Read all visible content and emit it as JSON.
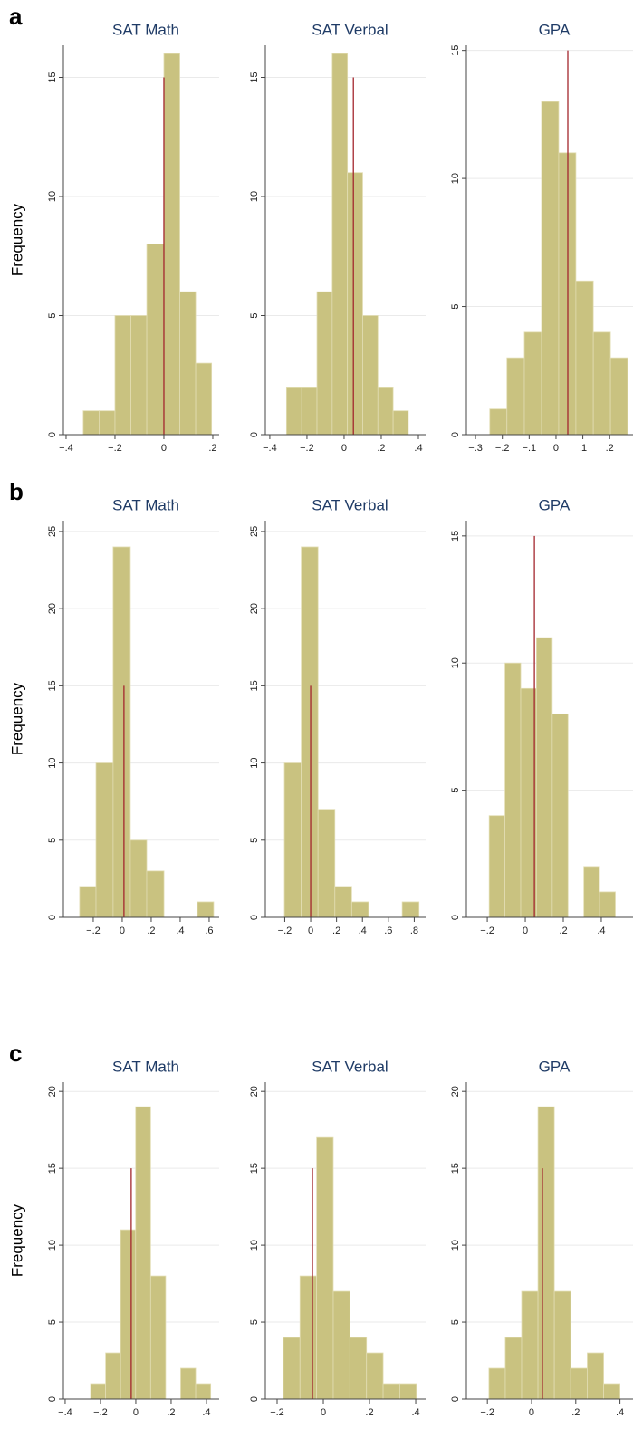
{
  "chart_data": [
    {
      "type": "histogram",
      "panel_label": "a",
      "ylabel": "Frequency",
      "title": "SAT Math",
      "bins": [
        -0.33,
        -0.265,
        -0.2,
        -0.135,
        -0.07,
        0,
        0.065,
        0.13,
        0.195
      ],
      "values": [
        1,
        1,
        5,
        5,
        8,
        16,
        6,
        3
      ],
      "color": "#c9c280",
      "xlim": [
        -0.411,
        0.226
      ],
      "xticks": [
        {
          "value": -0.4,
          "label": "−.4"
        },
        {
          "value": -0.2,
          "label": "−.2"
        },
        0,
        {
          "value": 0.2,
          "label": ".2"
        }
      ],
      "ylim": [
        0,
        16.35
      ],
      "yticks": [
        0,
        5,
        10,
        15
      ],
      "grid": true,
      "reference_line": {
        "x": 0,
        "y": 15,
        "color": "#a3262d"
      }
    },
    {
      "type": "histogram",
      "title": "SAT Verbal",
      "bins": [
        -0.31,
        -0.228,
        -0.146,
        -0.064,
        0.018,
        0.1,
        0.182,
        0.264,
        0.346
      ],
      "values": [
        2,
        2,
        6,
        16,
        11,
        5,
        2,
        1
      ],
      "color": "#c9c280",
      "xlim": [
        -0.424,
        0.439
      ],
      "xticks": [
        {
          "value": -0.4,
          "label": "−.4"
        },
        {
          "value": -0.2,
          "label": "−.2"
        },
        0,
        {
          "value": 0.2,
          "label": ".2"
        },
        {
          "value": 0.4,
          "label": ".4"
        }
      ],
      "ylim": [
        0,
        16.35
      ],
      "yticks": [
        0,
        5,
        10,
        15
      ],
      "grid": true,
      "reference_line": {
        "x": 0.05,
        "y": 15,
        "color": "#a3262d"
      }
    },
    {
      "type": "histogram",
      "title": "GPA",
      "bins": [
        -0.247,
        -0.183,
        -0.118,
        -0.054,
        0.01,
        0.074,
        0.139,
        0.203,
        0.267
      ],
      "values": [
        1,
        3,
        4,
        13,
        11,
        6,
        4,
        3
      ],
      "color": "#c9c280",
      "xlim": [
        -0.334,
        0.287
      ],
      "xticks": [
        {
          "value": -0.3,
          "label": "−.3"
        },
        {
          "value": -0.2,
          "label": "−.2"
        },
        {
          "value": -0.1,
          "label": "−.1"
        },
        0,
        {
          "value": 0.1,
          "label": ".1"
        },
        {
          "value": 0.2,
          "label": ".2"
        }
      ],
      "ylim": [
        0,
        15.2
      ],
      "yticks": [
        0,
        5,
        10,
        15
      ],
      "grid": true,
      "reference_line": {
        "x": 0.044,
        "y": 15,
        "color": "#a3262d"
      }
    },
    {
      "type": "histogram",
      "panel_label": "b",
      "ylabel": "Frequency",
      "title": "SAT Math",
      "bins": [
        -0.294,
        -0.181,
        -0.063,
        0.056,
        0.169,
        0.288,
        0.4,
        0.519,
        0.631
      ],
      "values": [
        2,
        10,
        24,
        5,
        3,
        0,
        0,
        1
      ],
      "color": "#c9c280",
      "xlim": [
        -0.406,
        0.669
      ],
      "xticks": [
        {
          "value": -0.2,
          "label": "−.2"
        },
        0,
        {
          "value": 0.2,
          "label": ".2"
        },
        {
          "value": 0.4,
          "label": ".4"
        },
        {
          "value": 0.6,
          "label": ".6"
        }
      ],
      "ylim": [
        0,
        25.7
      ],
      "yticks": [
        0,
        5,
        10,
        15,
        20,
        25
      ],
      "grid": true,
      "reference_line": {
        "x": 0.012,
        "y": 15,
        "color": "#a3262d"
      }
    },
    {
      "type": "histogram",
      "title": "SAT Verbal",
      "bins": [
        -0.203,
        -0.073,
        0.057,
        0.187,
        0.317,
        0.447,
        0.577,
        0.707,
        0.837
      ],
      "values": [
        10,
        24,
        7,
        2,
        1,
        0,
        0,
        1
      ],
      "color": "#c9c280",
      "xlim": [
        -0.35,
        0.888
      ],
      "xticks": [
        {
          "value": -0.2,
          "label": "−.2"
        },
        0,
        {
          "value": 0.2,
          "label": ".2"
        },
        {
          "value": 0.4,
          "label": ".4"
        },
        {
          "value": 0.6,
          "label": ".6"
        },
        {
          "value": 0.8,
          "label": ".8"
        }
      ],
      "ylim": [
        0,
        25.7
      ],
      "yticks": [
        0,
        5,
        10,
        15,
        20,
        25
      ],
      "grid": true,
      "reference_line": {
        "x": 0,
        "y": 15,
        "color": "#a3262d"
      }
    },
    {
      "type": "histogram",
      "title": "GPA",
      "bins": [
        -0.19,
        -0.107,
        -0.024,
        0.059,
        0.142,
        0.225,
        0.308,
        0.391,
        0.474
      ],
      "values": [
        4,
        10,
        9,
        11,
        8,
        0,
        2,
        1
      ],
      "color": "#c9c280",
      "xlim": [
        -0.31,
        0.567
      ],
      "xticks": [
        {
          "value": -0.2,
          "label": "−.2"
        },
        0,
        {
          "value": 0.2,
          "label": ".2"
        },
        {
          "value": 0.4,
          "label": ".4"
        }
      ],
      "ylim": [
        0,
        15.6
      ],
      "yticks": [
        0,
        5,
        10,
        15
      ],
      "grid": true,
      "reference_line": {
        "x": 0.048,
        "y": 15,
        "color": "#a3262d"
      }
    },
    {
      "type": "histogram",
      "panel_label": "c",
      "ylabel": "Frequency",
      "title": "SAT Math",
      "bins": [
        -0.256,
        -0.171,
        -0.086,
        -0.001,
        0.084,
        0.169,
        0.254,
        0.339,
        0.424
      ],
      "values": [
        1,
        3,
        11,
        19,
        8,
        0,
        2,
        1
      ],
      "color": "#c9c280",
      "xlim": [
        -0.41,
        0.472
      ],
      "xticks": [
        {
          "value": -0.4,
          "label": "−.4"
        },
        {
          "value": -0.2,
          "label": "−.2"
        },
        0,
        {
          "value": 0.2,
          "label": ".2"
        },
        {
          "value": 0.4,
          "label": ".4"
        }
      ],
      "ylim": [
        0,
        20.6
      ],
      "yticks": [
        0,
        5,
        10,
        15,
        20
      ],
      "grid": true,
      "reference_line": {
        "x": -0.026,
        "y": 15,
        "color": "#a3262d"
      }
    },
    {
      "type": "histogram",
      "title": "SAT Verbal",
      "bins": [
        -0.173,
        -0.101,
        -0.029,
        0.043,
        0.115,
        0.187,
        0.259,
        0.331,
        0.403
      ],
      "values": [
        4,
        8,
        17,
        7,
        4,
        3,
        1,
        1
      ],
      "color": "#c9c280",
      "xlim": [
        -0.251,
        0.443
      ],
      "xticks": [
        {
          "value": -0.2,
          "label": "−.2"
        },
        0,
        {
          "value": 0.2,
          "label": ".2"
        },
        {
          "value": 0.4,
          "label": ".4"
        }
      ],
      "ylim": [
        0,
        20.6
      ],
      "yticks": [
        0,
        5,
        10,
        15,
        20
      ],
      "grid": true,
      "reference_line": {
        "x": -0.047,
        "y": 15,
        "color": "#a3262d"
      }
    },
    {
      "type": "histogram",
      "title": "GPA",
      "bins": [
        -0.193,
        -0.119,
        -0.045,
        0.029,
        0.103,
        0.177,
        0.252,
        0.326,
        0.4
      ],
      "values": [
        2,
        4,
        7,
        19,
        7,
        2,
        3,
        1
      ],
      "color": "#c9c280",
      "xlim": [
        -0.295,
        0.459
      ],
      "xticks": [
        {
          "value": -0.2,
          "label": "−.2"
        },
        0,
        {
          "value": 0.2,
          "label": ".2"
        },
        {
          "value": 0.4,
          "label": ".4"
        }
      ],
      "ylim": [
        0,
        20.6
      ],
      "yticks": [
        0,
        5,
        10,
        15,
        20
      ],
      "grid": true,
      "reference_line": {
        "x": 0.049,
        "y": 15,
        "color": "#a3262d"
      }
    }
  ]
}
